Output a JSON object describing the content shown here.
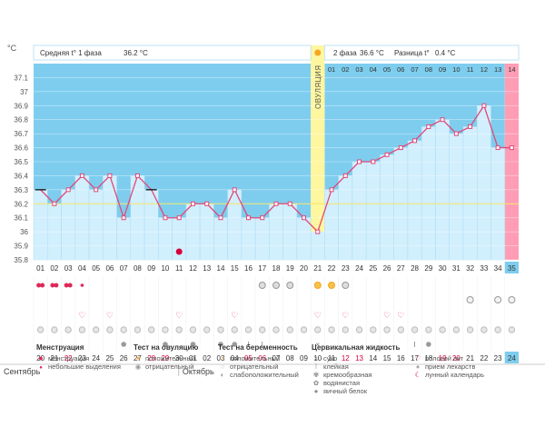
{
  "unit": "°C",
  "header": {
    "phase1_label": "Средняя t° 1 фаза",
    "phase1_value": "36.2 °C",
    "phase2_label": "2 фаза",
    "phase2_value": "36.6 °C",
    "diff_label": "Разница t°",
    "diff_value": "0.4 °C"
  },
  "ovulation_label": "ОВУЛЯЦИЯ",
  "months": [
    "Сентябрь",
    "Октябрь"
  ],
  "colors": {
    "phase1_bg": "#7ecdee",
    "phase2_bg": "#7ecdee",
    "bar_fill": "#d2effd",
    "line": "#e0487a",
    "ovulation": "#fff6a0",
    "alert": "#ff9db5",
    "red_text": "#d6003c"
  },
  "chart_data": {
    "type": "line",
    "ylim": [
      35.8,
      37.2
    ],
    "yticks": [
      "37.1",
      "37",
      "36.9",
      "36.8",
      "36.7",
      "36.6",
      "36.5",
      "36.4",
      "36.3",
      "36.2",
      "36.1",
      "36",
      "35.9",
      "35.8"
    ],
    "cycle_days": [
      "01",
      "02",
      "03",
      "04",
      "05",
      "06",
      "07",
      "08",
      "09",
      "10",
      "11",
      "12",
      "13",
      "14",
      "15",
      "16",
      "17",
      "18",
      "19",
      "20",
      "21",
      "22",
      "23",
      "24",
      "25",
      "26",
      "27",
      "28",
      "29",
      "30",
      "31",
      "32",
      "33",
      "34",
      "35"
    ],
    "phase2_days": [
      "01",
      "02",
      "03",
      "04",
      "05",
      "06",
      "07",
      "08",
      "09",
      "10",
      "11",
      "12",
      "13",
      "14"
    ],
    "dates": [
      "20",
      "21",
      "22",
      "23",
      "24",
      "25",
      "26",
      "27",
      "28",
      "29",
      "30",
      "01",
      "02",
      "03",
      "04",
      "05",
      "06",
      "07",
      "08",
      "09",
      "10",
      "11",
      "12",
      "13",
      "14",
      "15",
      "16",
      "17",
      "18",
      "19",
      "20",
      "21",
      "22",
      "23",
      "24"
    ],
    "red_dates": [
      3,
      9,
      10,
      16,
      17,
      23,
      24,
      30,
      31
    ],
    "temperature": [
      36.3,
      36.2,
      36.3,
      36.4,
      36.3,
      36.4,
      36.1,
      36.4,
      36.3,
      36.1,
      36.1,
      36.2,
      36.2,
      36.1,
      36.3,
      36.1,
      36.1,
      36.2,
      36.2,
      36.1,
      36.0,
      36.3,
      36.4,
      36.5,
      36.5,
      36.55,
      36.6,
      36.65,
      36.75,
      36.8,
      36.7,
      36.75,
      36.9,
      36.6,
      36.6
    ],
    "coverline": 36.2,
    "ovulation_day": 21,
    "excluded_days": [
      1,
      9
    ],
    "menstruation_days": [
      1,
      2,
      3
    ],
    "spotting_days": [
      4
    ],
    "ovulation_test_positive": [
      21,
      22
    ],
    "ovulation_test_negative": [
      17,
      18,
      19,
      23
    ],
    "intercourse_days": [
      4,
      6,
      11,
      15,
      21,
      23,
      26,
      27
    ],
    "pregnancy_test_weak": [
      32,
      34,
      35
    ],
    "pills_all_days": true,
    "creamy_days": [
      7,
      10,
      12,
      14,
      15,
      29
    ],
    "sticky_days": [
      16,
      17,
      28
    ],
    "dry_days": [
      21
    ],
    "lunar_day": 11
  },
  "legend": {
    "menstruation": {
      "title": "Менструация",
      "items": [
        "менструация",
        "небольшие выделения"
      ]
    },
    "ovulation_test": {
      "title": "Тест на овуляцию",
      "items": [
        "положительный",
        "отрицательный"
      ]
    },
    "pregnancy_test": {
      "title": "Тест на беременность",
      "items": [
        "положительный",
        "отрицательный",
        "слабоположительный"
      ]
    },
    "cervical": {
      "title": "Цервикальная жидкость",
      "items": [
        "сухо",
        "клейкая",
        "кремообразная",
        "водянистая",
        "яичный белок"
      ]
    },
    "other": {
      "items": [
        "половой акт",
        "прием лекарств",
        "лунный календарь"
      ]
    }
  }
}
